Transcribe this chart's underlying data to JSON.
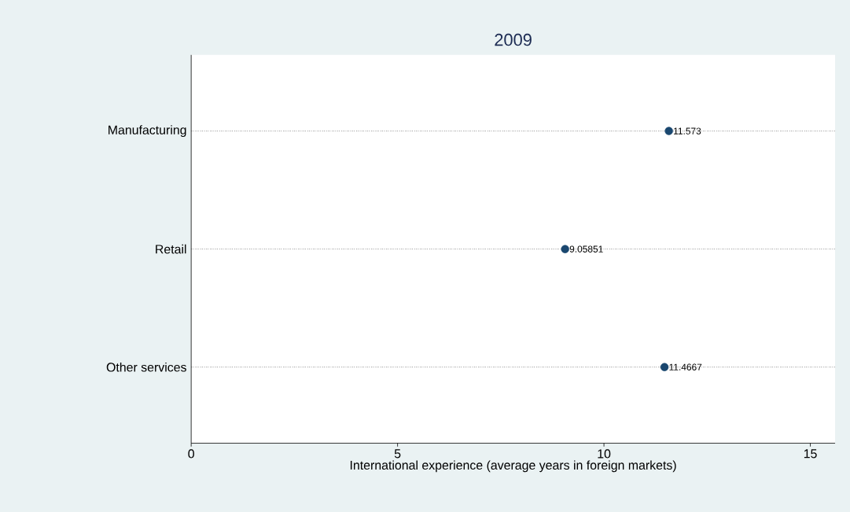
{
  "chart_data": {
    "type": "scatter",
    "orientation": "horizontal",
    "title": "2009",
    "xlabel": "International experience (average years in foreign markets)",
    "categories": [
      "Manufacturing",
      "Retail",
      "Other services"
    ],
    "values": [
      11.573,
      9.05851,
      11.4667
    ],
    "color": "#1a476f",
    "xlim": [
      0,
      15.6
    ],
    "xticks": [
      0,
      5,
      10,
      15
    ],
    "grid": "y",
    "marker": "circle",
    "data_labels": true
  }
}
